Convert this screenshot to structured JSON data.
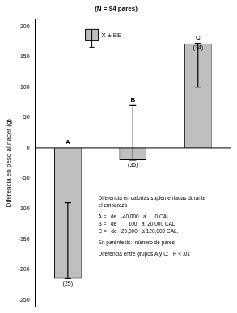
{
  "chart_data": {
    "type": "bar",
    "title": "(N = 94 pares)",
    "y_label": "Diferencia en peso al nacer (g)",
    "categories": [
      "A",
      "B",
      "C"
    ],
    "values": [
      -215,
      -20,
      172
    ],
    "errors": [
      125,
      90,
      72
    ],
    "n_labels": [
      "(25)",
      "(35)",
      "(34)"
    ],
    "color": "#bfbfbf",
    "ylim": [
      -262,
      212
    ],
    "yticks": [
      -250,
      -200,
      -150,
      -100,
      -50,
      0,
      50,
      100,
      150,
      200
    ],
    "grid": false,
    "legend_text": "X̄ ± EE",
    "annotations": [
      "Diferencia en calorías suplementadas durante",
      "el embarazo",
      "A =   de   -40,000   a      0 CAL.",
      "B =   de        100   a  20,000 CAL.",
      "C =   de   20,000   a 120,000 CAL.",
      "En paréntesis:  número de pares",
      "Diferencia entre grupos A y C:   P < .01"
    ]
  }
}
